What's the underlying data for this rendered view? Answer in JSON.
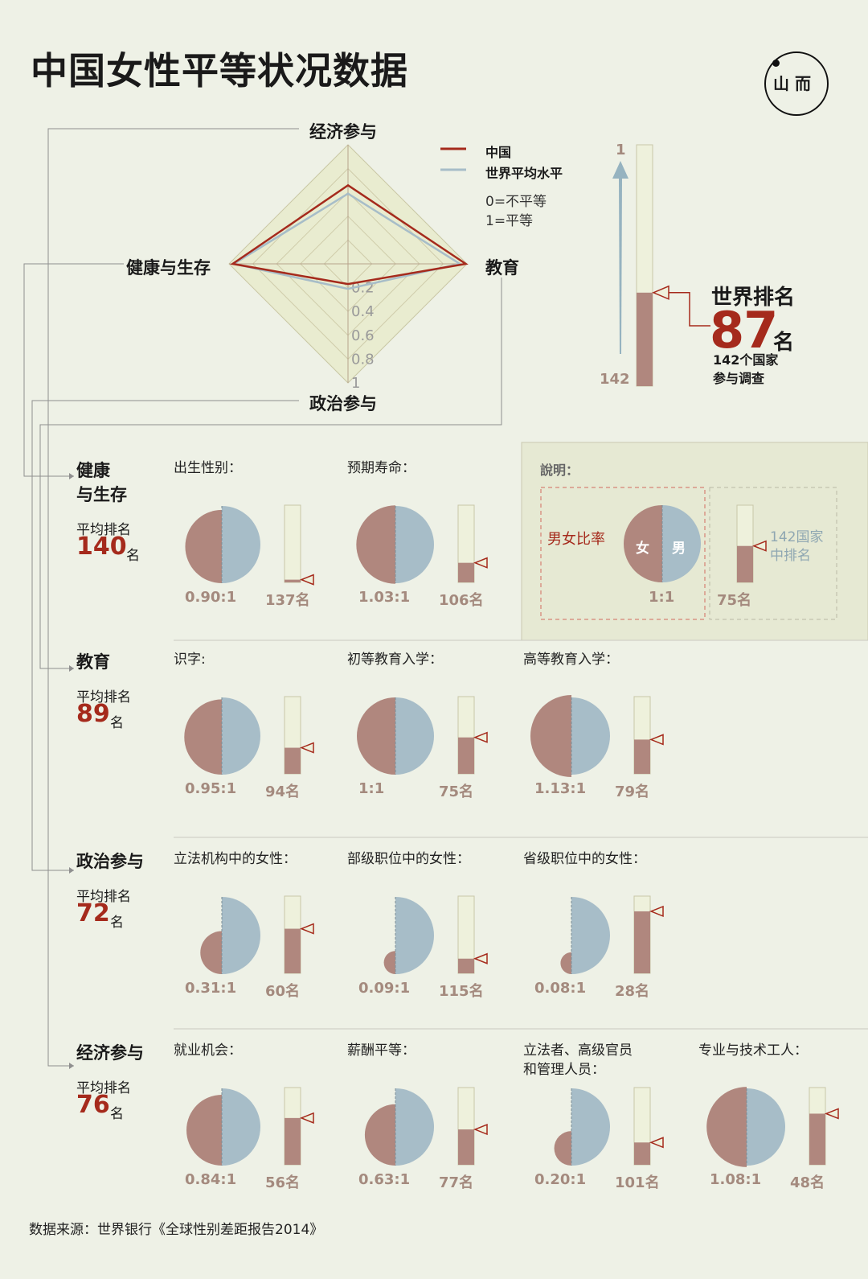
{
  "title": "中国女性平等状况数据",
  "logo_text": "山 而",
  "colors": {
    "china": "#a52a1c",
    "world": "#a7bdc8",
    "female": "#b0877e",
    "male": "#a7bdc8",
    "bar_empty": "#eef1dc",
    "radar_fill": "#e9ecd0"
  },
  "chart_data": [
    {
      "type": "radar",
      "axes": [
        "经济参与",
        "教育",
        "政治参与",
        "健康与生存"
      ],
      "tick_labels": [
        "0.2",
        "0.4",
        "0.6",
        "0.8",
        "1"
      ],
      "range": [
        0,
        1
      ],
      "series": [
        {
          "name": "中国",
          "values": [
            0.66,
            0.99,
            0.17,
            0.97
          ]
        },
        {
          "name": "世界平均水平",
          "values": [
            0.59,
            0.94,
            0.21,
            0.96
          ]
        }
      ],
      "legend": [
        "中国",
        "世界平均水平"
      ],
      "legend_notes": [
        "0=不平等",
        "1=平等"
      ]
    },
    {
      "type": "bar",
      "name": "world-rank",
      "rank": 87,
      "of": 142,
      "scale_top_label": "1",
      "scale_bottom_label": "142",
      "heading": "世界排名",
      "unit": "名",
      "sub": [
        "142个国家",
        "参与调查"
      ]
    },
    {
      "type": "pie",
      "sections": [
        {
          "name_lines": [
            "健康",
            "与生存"
          ],
          "avg_label": "平均排名",
          "avg_rank": "140",
          "avg_unit": "名",
          "metrics": [
            {
              "label": "出生性别：",
              "ratio": 0.9,
              "ratio_text": "0.90:1",
              "rank": 137,
              "rank_text": "137名"
            },
            {
              "label": "预期寿命：",
              "ratio": 1.03,
              "ratio_text": "1.03:1",
              "rank": 106,
              "rank_text": "106名"
            }
          ]
        },
        {
          "name_lines": [
            "教育"
          ],
          "avg_label": "平均排名",
          "avg_rank": "89",
          "avg_unit": "名",
          "metrics": [
            {
              "label": "识字:",
              "ratio": 0.95,
              "ratio_text": "0.95:1",
              "rank": 94,
              "rank_text": "94名"
            },
            {
              "label": "初等教育入学：",
              "ratio": 1.0,
              "ratio_text": "1:1",
              "rank": 75,
              "rank_text": "75名"
            },
            {
              "label": "高等教育入学：",
              "ratio": 1.13,
              "ratio_text": "1.13:1",
              "rank": 79,
              "rank_text": "79名"
            }
          ]
        },
        {
          "name_lines": [
            "政治参与"
          ],
          "avg_label": "平均排名",
          "avg_rank": "72",
          "avg_unit": "名",
          "metrics": [
            {
              "label": "立法机构中的女性：",
              "ratio": 0.31,
              "ratio_text": "0.31:1",
              "rank": 60,
              "rank_text": "60名"
            },
            {
              "label": "部级职位中的女性：",
              "ratio": 0.09,
              "ratio_text": "0.09:1",
              "rank": 115,
              "rank_text": "115名"
            },
            {
              "label": "省级职位中的女性：",
              "ratio": 0.08,
              "ratio_text": "0.08:1",
              "rank": 28,
              "rank_text": "28名"
            }
          ]
        },
        {
          "name_lines": [
            "经济参与"
          ],
          "avg_label": "平均排名",
          "avg_rank": "76",
          "avg_unit": "名",
          "metrics": [
            {
              "label": "就业机会：",
              "ratio": 0.84,
              "ratio_text": "0.84:1",
              "rank": 56,
              "rank_text": "56名"
            },
            {
              "label": "薪酬平等：",
              "ratio": 0.63,
              "ratio_text": "0.63:1",
              "rank": 77,
              "rank_text": "77名"
            },
            {
              "label": "立法者、高级官员\n和管理人员：",
              "ratio": 0.2,
              "ratio_text": "0.20:1",
              "rank": 101,
              "rank_text": "101名"
            },
            {
              "label": "专业与技术工人：",
              "ratio": 1.08,
              "ratio_text": "1.08:1",
              "rank": 48,
              "rank_text": "48名"
            }
          ]
        }
      ]
    }
  ],
  "legend_box": {
    "title": "說明：",
    "ratio_label": "男女比率",
    "female": "女",
    "male": "男",
    "ratio_text": "1:1",
    "rank_label_lines": [
      "142国家",
      "中排名"
    ],
    "rank": 75,
    "rank_text": "75名"
  },
  "source": "数据来源：世界银行《全球性别差距报告2014》"
}
